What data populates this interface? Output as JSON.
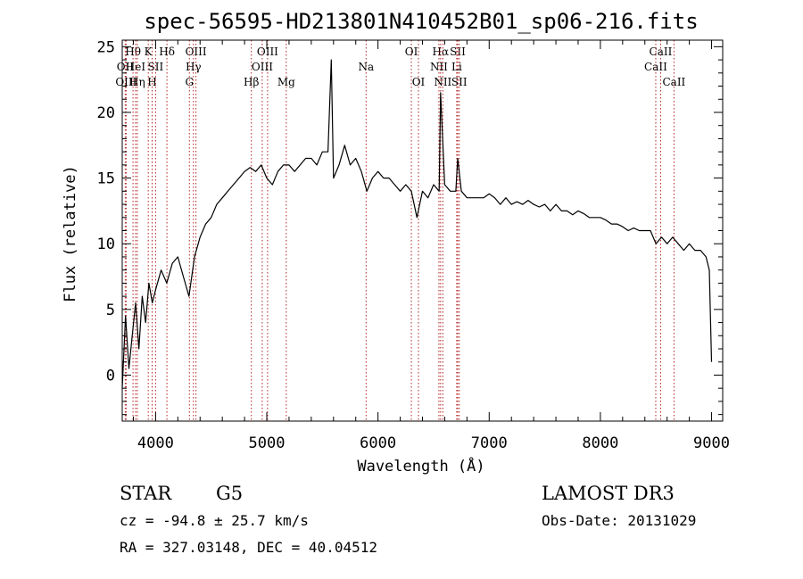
{
  "chart_data": {
    "type": "line",
    "title": "spec-56595-HD213801N410452B01_sp06-216.fits",
    "xlabel": "Wavelength (Å)",
    "ylabel": "Flux (relative)",
    "xlim": [
      3700,
      9100
    ],
    "ylim": [
      -3.5,
      25.5
    ],
    "xticks": [
      4000,
      5000,
      6000,
      7000,
      8000,
      9000
    ],
    "yticks": [
      0,
      5,
      10,
      15,
      20,
      25
    ],
    "grid": false,
    "series": [
      {
        "x": [
          3700,
          3730,
          3760,
          3790,
          3820,
          3850,
          3880,
          3910,
          3940,
          3970,
          4000,
          4050,
          4100,
          4150,
          4200,
          4250,
          4300,
          4350,
          4400,
          4450,
          4500,
          4550,
          4600,
          4650,
          4700,
          4750,
          4800,
          4850,
          4900,
          4950,
          5000,
          5050,
          5100,
          5150,
          5200,
          5250,
          5300,
          5350,
          5400,
          5450,
          5500,
          5550,
          5580,
          5600,
          5650,
          5700,
          5750,
          5800,
          5850,
          5900,
          5950,
          6000,
          6050,
          6100,
          6150,
          6200,
          6250,
          6300,
          6350,
          6400,
          6450,
          6500,
          6550,
          6563,
          6600,
          6650,
          6700,
          6717,
          6750,
          6800,
          6850,
          6900,
          6950,
          7000,
          7050,
          7100,
          7150,
          7200,
          7250,
          7300,
          7350,
          7400,
          7450,
          7500,
          7550,
          7600,
          7650,
          7700,
          7750,
          7800,
          7850,
          7900,
          7950,
          8000,
          8050,
          8100,
          8150,
          8200,
          8250,
          8300,
          8350,
          8400,
          8450,
          8500,
          8550,
          8600,
          8650,
          8700,
          8750,
          8800,
          8850,
          8900,
          8950,
          8980,
          9000
        ],
        "y": [
          -1.0,
          4.5,
          0.5,
          3.0,
          5.5,
          2.0,
          6.0,
          4.0,
          7.0,
          5.5,
          6.5,
          8.0,
          7.0,
          8.5,
          9.0,
          7.5,
          6.0,
          9.0,
          10.5,
          11.5,
          12.0,
          13.0,
          13.5,
          14.0,
          14.5,
          15.0,
          15.5,
          15.8,
          15.5,
          16.0,
          15.0,
          14.5,
          15.5,
          16.0,
          16.0,
          15.5,
          16.0,
          16.5,
          16.5,
          16.0,
          17.0,
          17.0,
          24.0,
          15.0,
          16.0,
          17.5,
          16.0,
          16.5,
          15.5,
          14.0,
          15.0,
          15.5,
          15.0,
          15.0,
          14.5,
          14.0,
          14.5,
          14.0,
          12.0,
          14.0,
          13.5,
          14.5,
          14.0,
          21.5,
          14.5,
          14.0,
          14.0,
          16.5,
          14.0,
          13.5,
          13.5,
          13.5,
          13.5,
          13.8,
          13.5,
          13.0,
          13.5,
          13.0,
          13.2,
          13.0,
          13.3,
          13.0,
          12.8,
          13.0,
          12.5,
          13.0,
          12.5,
          12.5,
          12.2,
          12.5,
          12.3,
          12.0,
          12.0,
          12.0,
          11.8,
          11.5,
          11.5,
          11.3,
          11.0,
          11.2,
          11.0,
          11.0,
          11.0,
          10.0,
          10.5,
          10.0,
          10.5,
          10.0,
          9.5,
          10.0,
          9.5,
          9.5,
          9.0,
          8.0,
          1.0
        ]
      }
    ],
    "line_markers": [
      {
        "label": "OII",
        "x": 3727,
        "row": 1
      },
      {
        "label": "OIII",
        "x": 3735,
        "row": 2
      },
      {
        "label": "Hθ",
        "x": 3797,
        "row": 0
      },
      {
        "label": "HeI",
        "x": 3820,
        "row": 1
      },
      {
        "label": "Hη",
        "x": 3835,
        "row": 2
      },
      {
        "label": "K",
        "x": 3934,
        "row": 0
      },
      {
        "label": "SII",
        "x": 4000,
        "row": 1
      },
      {
        "label": "H",
        "x": 3969,
        "row": 2
      },
      {
        "label": "Hδ",
        "x": 4102,
        "row": 0
      },
      {
        "label": "OIII",
        "x": 4363,
        "row": 0
      },
      {
        "label": "Hγ",
        "x": 4340,
        "row": 1
      },
      {
        "label": "G",
        "x": 4304,
        "row": 2
      },
      {
        "label": "Hβ",
        "x": 4861,
        "row": 2
      },
      {
        "label": "OIII",
        "x": 5007,
        "row": 0
      },
      {
        "label": "OIII",
        "x": 4959,
        "row": 1
      },
      {
        "label": "Mg",
        "x": 5175,
        "row": 2
      },
      {
        "label": "Na",
        "x": 5893,
        "row": 1
      },
      {
        "label": "OI",
        "x": 6300,
        "row": 0
      },
      {
        "label": "OI",
        "x": 6364,
        "row": 2
      },
      {
        "label": "Hα",
        "x": 6563,
        "row": 0
      },
      {
        "label": "NII",
        "x": 6548,
        "row": 1
      },
      {
        "label": "NII",
        "x": 6583,
        "row": 2
      },
      {
        "label": "SII",
        "x": 6717,
        "row": 0
      },
      {
        "label": "Li",
        "x": 6708,
        "row": 1
      },
      {
        "label": "SII",
        "x": 6731,
        "row": 2
      },
      {
        "label": "CaII",
        "x": 8542,
        "row": 0
      },
      {
        "label": "CaII",
        "x": 8498,
        "row": 1
      },
      {
        "label": "CaII",
        "x": 8662,
        "row": 2
      }
    ]
  },
  "info": {
    "class": "STAR",
    "subclass": "G5",
    "survey": "LAMOST DR3",
    "cz": "cz = -94.8 ± 25.7 km/s",
    "obs_date": "Obs-Date: 20131029",
    "coords": "RA = 327.03148, DEC =  40.04512"
  }
}
